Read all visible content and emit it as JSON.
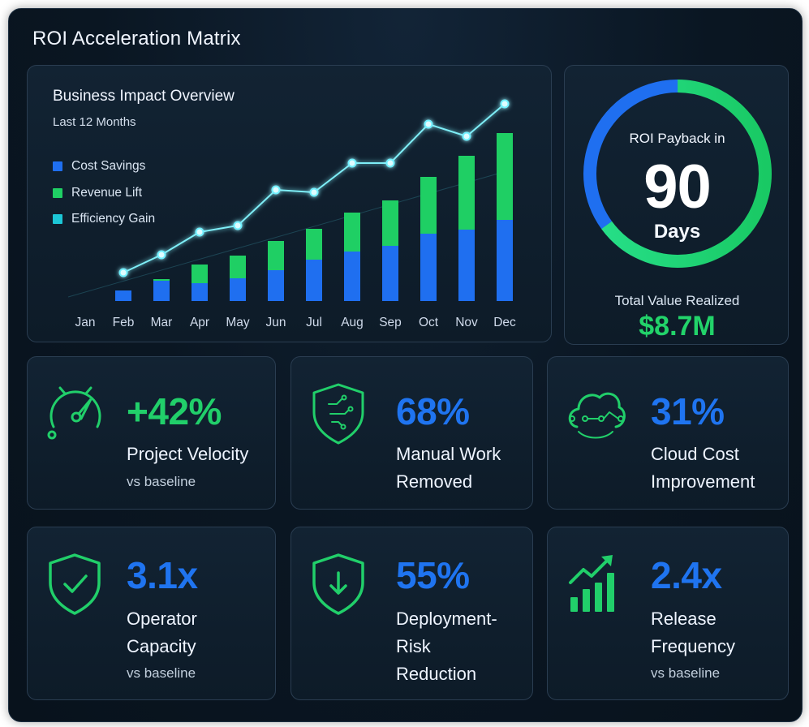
{
  "app": {
    "title": "ROI Acceleration Matrix"
  },
  "impact": {
    "title": "Business Impact Overview",
    "subtitle": "Last 12 Months",
    "legend": [
      {
        "label": "Cost Savings",
        "color": "#1f6ff0"
      },
      {
        "label": "Revenue Lift",
        "color": "#1fcf64"
      },
      {
        "label": "Efficiency Gain",
        "color": "#1cc6d6"
      }
    ]
  },
  "chart_data": {
    "type": "bar",
    "stacked": true,
    "categories": [
      "Jan",
      "Feb",
      "Mar",
      "Apr",
      "May",
      "Jun",
      "Jul",
      "Aug",
      "Sep",
      "Oct",
      "Nov",
      "Dec"
    ],
    "series": [
      {
        "name": "Cost Savings",
        "type": "bar",
        "color": "#1f6ff0",
        "values": [
          0,
          13,
          25,
          22,
          28,
          38,
          51,
          61,
          68,
          83,
          88,
          100
        ]
      },
      {
        "name": "Revenue Lift",
        "type": "bar",
        "color": "#1fcf64",
        "values": [
          0,
          0,
          2,
          23,
          28,
          36,
          38,
          48,
          56,
          70,
          91,
          107
        ]
      },
      {
        "name": "Efficiency Gain",
        "type": "line",
        "color": "#5fe8f2",
        "values": [
          null,
          35,
          57,
          85,
          93,
          137,
          134,
          170,
          170,
          218,
          203,
          243
        ]
      }
    ],
    "xlabel": "",
    "ylabel": "",
    "grid": false,
    "legend_position": "top-left"
  },
  "payback": {
    "label": "ROI Payback in",
    "number": "90",
    "unit": "Days",
    "value_label": "Total Value Realized",
    "value": "$8.7M",
    "ring_blue_fraction": 0.35
  },
  "metrics": [
    {
      "value": "+42%",
      "label_line1": "Project Velocity",
      "label_line2": "",
      "note": "vs baseline",
      "icon": "speedometer-icon",
      "color": "#21cf6a"
    },
    {
      "value": "68%",
      "label_line1": "Manual Work",
      "label_line2": "Removed",
      "note": "",
      "icon": "shield-circuit-icon",
      "color": "#1f74f0"
    },
    {
      "value": "31%",
      "label_line1": "Cloud Cost",
      "label_line2": "Improvement",
      "note": "",
      "icon": "cloud-network-icon",
      "color": "#1f74f0"
    },
    {
      "value": "3.1x",
      "label_line1": "Operator",
      "label_line2": "Capacity",
      "note": "vs baseline",
      "icon": "shield-check-icon",
      "color": "#1f74f0"
    },
    {
      "value": "55%",
      "label_line1": "Deployment-Risk",
      "label_line2": "Reduction",
      "note": "",
      "icon": "shield-arrow-down-icon",
      "color": "#1f74f0"
    },
    {
      "value": "2.4x",
      "label_line1": "Release",
      "label_line2": "Frequency",
      "note": "vs baseline",
      "icon": "bar-chart-trend-icon",
      "color": "#1f74f0"
    }
  ]
}
